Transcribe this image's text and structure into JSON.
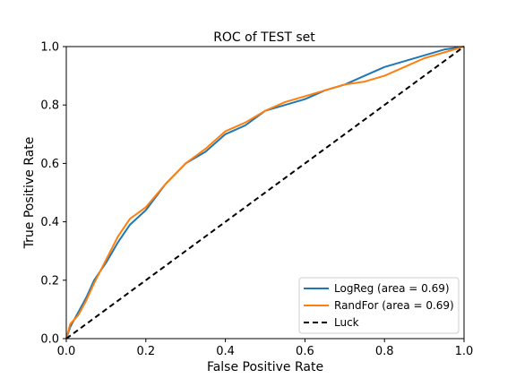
{
  "chart_data": {
    "type": "line",
    "title": "ROC of TEST set",
    "xlabel": "False Positive Rate",
    "ylabel": "True Positive Rate",
    "xlim": [
      0.0,
      1.0
    ],
    "ylim": [
      0.0,
      1.0
    ],
    "xticks": [
      "0.0",
      "0.2",
      "0.4",
      "0.6",
      "0.8",
      "1.0"
    ],
    "yticks": [
      "0.0",
      "0.2",
      "0.4",
      "0.6",
      "0.8",
      "1.0"
    ],
    "grid": false,
    "legend_position": "bottom-right",
    "series": [
      {
        "name": "LogReg (area = 0.69)",
        "color": "#1f77b4",
        "style": "solid",
        "x": [
          0.0,
          0.01,
          0.03,
          0.05,
          0.07,
          0.1,
          0.13,
          0.16,
          0.2,
          0.25,
          0.3,
          0.35,
          0.4,
          0.45,
          0.5,
          0.55,
          0.6,
          0.65,
          0.7,
          0.75,
          0.8,
          0.85,
          0.9,
          0.95,
          1.0
        ],
        "y": [
          0.0,
          0.04,
          0.09,
          0.14,
          0.2,
          0.26,
          0.33,
          0.39,
          0.44,
          0.53,
          0.6,
          0.64,
          0.7,
          0.73,
          0.78,
          0.8,
          0.82,
          0.85,
          0.87,
          0.9,
          0.93,
          0.95,
          0.97,
          0.99,
          1.0
        ]
      },
      {
        "name": "RandFor (area = 0.69)",
        "color": "#ff7f0e",
        "style": "solid",
        "x": [
          0.0,
          0.01,
          0.03,
          0.05,
          0.07,
          0.1,
          0.13,
          0.16,
          0.2,
          0.25,
          0.3,
          0.35,
          0.4,
          0.45,
          0.5,
          0.55,
          0.6,
          0.65,
          0.7,
          0.75,
          0.8,
          0.85,
          0.9,
          0.95,
          1.0
        ],
        "y": [
          0.0,
          0.05,
          0.08,
          0.13,
          0.19,
          0.27,
          0.35,
          0.41,
          0.45,
          0.53,
          0.6,
          0.65,
          0.71,
          0.74,
          0.78,
          0.81,
          0.83,
          0.85,
          0.87,
          0.88,
          0.9,
          0.93,
          0.96,
          0.98,
          1.0
        ]
      },
      {
        "name": "Luck",
        "color": "#000000",
        "style": "dashed",
        "x": [
          0.0,
          1.0
        ],
        "y": [
          0.0,
          1.0
        ]
      }
    ]
  }
}
